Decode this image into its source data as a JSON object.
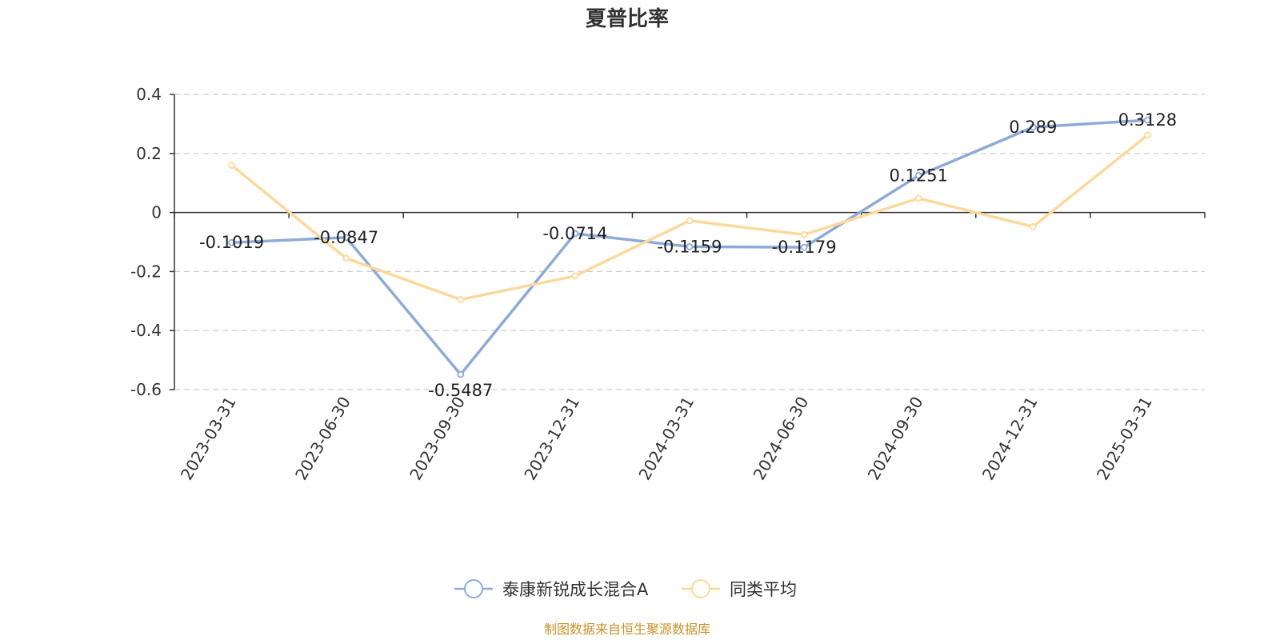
{
  "chart_data": {
    "type": "line",
    "title": "夏普比率",
    "categories": [
      "2023-03-31",
      "2023-06-30",
      "2023-09-30",
      "2023-12-31",
      "2024-03-31",
      "2024-06-30",
      "2024-09-30",
      "2024-12-31",
      "2025-03-31"
    ],
    "series": [
      {
        "name": "泰康新锐成长混合A",
        "color": "#8eaad8",
        "values": [
          -0.1019,
          -0.0847,
          -0.5487,
          -0.0714,
          -0.1159,
          -0.1179,
          0.1251,
          0.289,
          0.3128
        ],
        "labels": [
          "-0.1019",
          "-0.0847",
          "-0.5487",
          "-0.0714",
          "-0.1159",
          "-0.1179",
          "0.1251",
          "0.289",
          "0.3128"
        ]
      },
      {
        "name": "同类平均",
        "color": "#fcd99a",
        "values": [
          0.16,
          -0.155,
          -0.295,
          -0.215,
          -0.028,
          -0.075,
          0.048,
          -0.048,
          0.262
        ]
      }
    ],
    "ylim": [
      -0.6,
      0.4
    ],
    "yticks": [
      0.4,
      0.2,
      0,
      -0.2,
      -0.4,
      -0.6
    ],
    "ytick_labels": [
      "0.4",
      "0.2",
      "0",
      "-0.2",
      "-0.4",
      "-0.6"
    ],
    "grid": true,
    "legend_position": "bottom-center"
  },
  "source": "制图数据来自恒生聚源数据库"
}
